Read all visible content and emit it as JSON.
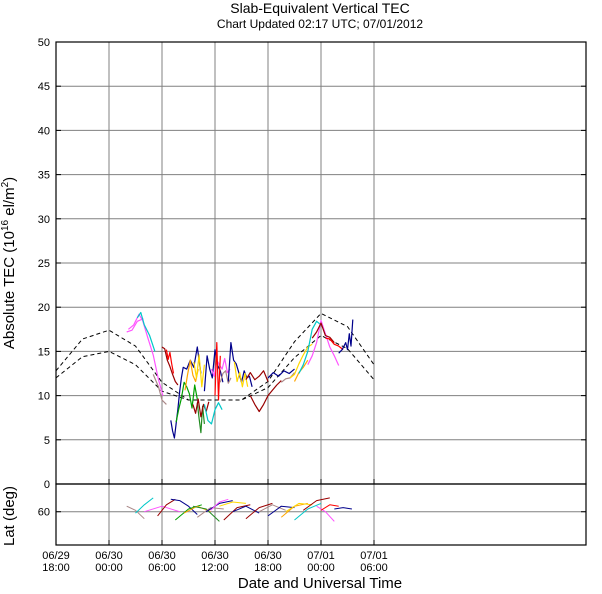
{
  "chart_data": {
    "type": "line",
    "title": "Slab-Equivalent Vertical TEC",
    "subtitle": "Chart Updated 02:17 UTC; 07/01/2012",
    "xlabel": "Date and Universal Time",
    "ylabel": "Absolute TEC (10",
    "ylabel_exp": "16",
    "ylabel_unit": " el/m",
    "ylabel_exp2": "2",
    "ylabel_close": ")",
    "lat_ylabel": "Lat (deg)",
    "x_unit": "hours since 06/29 18:00",
    "xlim": [
      0,
      60
    ],
    "ylim": [
      0,
      50
    ],
    "lat_ylim": [
      72,
      50
    ],
    "grid": true,
    "x_ticks": [
      {
        "x": 0,
        "date": "06/29",
        "time": "18:00"
      },
      {
        "x": 6,
        "date": "06/30",
        "time": "00:00"
      },
      {
        "x": 12,
        "date": "06/30",
        "time": "06:00"
      },
      {
        "x": 18,
        "date": "06/30",
        "time": "12:00"
      },
      {
        "x": 24,
        "date": "06/30",
        "time": "18:00"
      },
      {
        "x": 30,
        "date": "07/01",
        "time": "00:00"
      },
      {
        "x": 36,
        "date": "07/01",
        "time": "06:00"
      }
    ],
    "y_ticks": [
      0,
      5,
      10,
      15,
      20,
      25,
      30,
      35,
      40,
      45,
      50
    ],
    "lat_ticks": [
      60
    ],
    "reference_curves": [
      {
        "style": "dashed",
        "x": [
          0,
          3,
          6,
          9,
          12,
          15,
          18,
          21,
          24,
          27,
          30,
          33,
          36
        ],
        "y": [
          12.8,
          16.4,
          17.4,
          15.6,
          11.5,
          9.5,
          9.5,
          9.5,
          11.6,
          16.1,
          19.3,
          17.8,
          13.5
        ]
      },
      {
        "style": "dashed",
        "x": [
          0,
          3,
          6,
          9,
          12,
          15,
          18,
          21,
          24,
          27,
          30,
          33,
          36
        ],
        "y": [
          12.0,
          14.4,
          15.0,
          13.5,
          10.5,
          9.5,
          9.5,
          9.5,
          10.9,
          14.3,
          16.8,
          15.3,
          11.8
        ]
      }
    ],
    "series": [
      {
        "color": "#ff55ff",
        "x": [
          8.2,
          8.8,
          9.4,
          9.8,
          10.4,
          11.0,
          11.6,
          12.1
        ],
        "y": [
          17.5,
          18.0,
          19.2,
          18.5,
          16.5,
          14.6,
          11.8,
          10.0
        ]
      },
      {
        "color": "#ff55ff",
        "x": [
          8.0,
          8.6,
          9.2,
          9.9
        ],
        "y": [
          17.2,
          17.4,
          18.4,
          18.7
        ]
      },
      {
        "color": "#00c8c8",
        "x": [
          9.2,
          9.6,
          10.0,
          10.6,
          11.2
        ],
        "y": [
          18.8,
          19.4,
          18.0,
          16.8,
          15.0
        ]
      },
      {
        "color": "#aa8888",
        "x": [
          11.0,
          11.6,
          12.0,
          12.5
        ],
        "y": [
          12.4,
          11.0,
          9.5,
          9.0
        ]
      },
      {
        "color": "#990000",
        "x": [
          12.0,
          12.3,
          12.6,
          12.9,
          13.2,
          13.5,
          13.8
        ],
        "y": [
          15.5,
          15.3,
          14.0,
          13.3,
          12.4,
          11.6,
          11.2
        ]
      },
      {
        "color": "#ff0000",
        "x": [
          12.5,
          12.7,
          12.9,
          13.1,
          13.3
        ],
        "y": [
          15.2,
          14.1,
          14.9,
          13.6,
          12.5
        ]
      },
      {
        "color": "#00008b",
        "x": [
          13.0,
          13.2,
          13.4,
          13.6,
          13.8,
          14.0,
          14.2,
          14.4,
          14.8,
          15.2,
          15.6,
          16.0,
          16.4
        ],
        "y": [
          7.2,
          6.0,
          5.2,
          6.8,
          8.5,
          10.5,
          12.0,
          13.2,
          13.0,
          14.0,
          13.2,
          15.5,
          12.5
        ]
      },
      {
        "color": "#00a000",
        "x": [
          13.6,
          13.9,
          14.2,
          14.5,
          14.8,
          15.1,
          15.4,
          15.7,
          16.0
        ],
        "y": [
          7.0,
          8.5,
          9.7,
          11.5,
          11.0,
          10.2,
          8.6,
          11.2,
          9.6
        ]
      },
      {
        "color": "#ffa500",
        "x": [
          14.6,
          14.9,
          15.2,
          15.5,
          15.8,
          16.1
        ],
        "y": [
          10.6,
          12.4,
          14.0,
          12.3,
          11.6,
          13.0
        ]
      },
      {
        "color": "#228b22",
        "x": [
          16.0,
          16.2,
          16.4,
          16.6,
          16.8
        ],
        "y": [
          9.2,
          7.4,
          5.8,
          8.8,
          6.8
        ]
      },
      {
        "color": "#990000",
        "x": [
          15.5,
          15.8,
          16.1,
          16.4,
          16.7,
          17.0,
          17.3
        ],
        "y": [
          9.0,
          8.0,
          9.6,
          7.6,
          9.0,
          8.2,
          9.3
        ]
      },
      {
        "color": "#00c8c8",
        "x": [
          16.8,
          17.2,
          17.6,
          18.0,
          18.4,
          18.8
        ],
        "y": [
          9.0,
          7.2,
          6.8,
          8.4,
          9.2,
          8.4
        ]
      },
      {
        "color": "#ffd800",
        "x": [
          15.6,
          15.9,
          16.2,
          16.5,
          16.8
        ],
        "y": [
          13.8,
          12.0,
          14.6,
          11.0,
          13.5
        ]
      },
      {
        "color": "#00008b",
        "x": [
          16.8,
          17.1,
          17.4,
          17.7,
          18.0,
          18.3,
          18.6,
          18.9
        ],
        "y": [
          10.5,
          14.5,
          13.0,
          12.0,
          15.2,
          13.4,
          12.8,
          11.5
        ]
      },
      {
        "color": "#ff55ff",
        "x": [
          17.6,
          17.9,
          18.2,
          18.5,
          18.8,
          19.1,
          19.4,
          19.7
        ],
        "y": [
          13.0,
          12.2,
          14.0,
          13.5,
          13.0,
          14.2,
          12.6,
          13.0
        ]
      },
      {
        "color": "#ff0000",
        "x": [
          18.0,
          18.2,
          18.4,
          18.6
        ],
        "y": [
          10.0,
          16.0,
          9.5,
          14.5
        ]
      },
      {
        "color": "#aa8888",
        "x": [
          18.6,
          18.9,
          19.2,
          19.5,
          19.8
        ],
        "y": [
          11.5,
          12.5,
          12.8,
          11.4,
          12.0
        ]
      },
      {
        "color": "#00008b",
        "x": [
          19.5,
          19.8,
          20.1,
          20.4,
          20.7,
          21.0,
          21.3,
          21.6,
          21.9,
          22.2
        ],
        "y": [
          11.6,
          16.0,
          14.0,
          13.6,
          12.6,
          11.5,
          12.8,
          12.0,
          12.2,
          11.0
        ]
      },
      {
        "color": "#ffd800",
        "x": [
          20.2,
          20.5,
          20.8,
          21.1,
          21.4,
          21.7
        ],
        "y": [
          13.8,
          11.6,
          12.6,
          11.0,
          12.5,
          11.0
        ]
      },
      {
        "color": "#990000",
        "x": [
          21.5,
          22.0,
          22.5,
          23.0,
          23.5,
          24.0
        ],
        "y": [
          11.8,
          12.6,
          11.8,
          12.2,
          12.8,
          11.6
        ]
      },
      {
        "color": "#990000",
        "x": [
          22.0,
          22.5,
          23.0,
          23.5,
          24.0,
          24.5,
          25.0,
          25.5
        ],
        "y": [
          10.0,
          9.0,
          8.2,
          9.0,
          10.0,
          10.6,
          11.2,
          11.7
        ]
      },
      {
        "color": "#00008b",
        "x": [
          24.0,
          24.6,
          25.2,
          25.8,
          26.4,
          27.0
        ],
        "y": [
          12.0,
          12.6,
          12.2,
          12.8,
          12.5,
          13.0
        ]
      },
      {
        "color": "#aa8888",
        "x": [
          25.5,
          26.0,
          26.5,
          27.0
        ],
        "y": [
          11.5,
          11.9,
          12.0,
          12.6
        ]
      },
      {
        "color": "#ffd800",
        "x": [
          26.5,
          27.0,
          27.5,
          28.0,
          28.5,
          29.0
        ],
        "y": [
          12.0,
          12.4,
          13.6,
          14.6,
          15.5,
          15.8
        ]
      },
      {
        "color": "#ffa500",
        "x": [
          27.0,
          27.5,
          28.0,
          28.5
        ],
        "y": [
          11.6,
          12.6,
          13.2,
          14.0
        ]
      },
      {
        "color": "#00c8c8",
        "x": [
          27.5,
          28.0,
          28.5,
          29.0,
          29.5,
          30.0
        ],
        "y": [
          12.5,
          13.5,
          15.0,
          17.5,
          18.4,
          18.0
        ]
      },
      {
        "color": "#ff55ff",
        "x": [
          28.5,
          29.0,
          29.5,
          30.0,
          30.5,
          31.0,
          31.5,
          32.0
        ],
        "y": [
          13.5,
          14.5,
          16.0,
          18.5,
          17.0,
          15.5,
          14.5,
          13.4
        ]
      },
      {
        "color": "#990000",
        "x": [
          29.0,
          29.5,
          30.0,
          30.5,
          31.0,
          31.5
        ],
        "y": [
          16.5,
          17.2,
          18.2,
          16.8,
          16.6,
          16.0
        ]
      },
      {
        "color": "#ff0000",
        "x": [
          30.5,
          31.0,
          31.5,
          32.0,
          32.5
        ],
        "y": [
          16.5,
          16.4,
          15.8,
          15.6,
          15.2
        ]
      },
      {
        "color": "#00008b",
        "x": [
          32.0,
          32.4,
          32.8,
          33.0,
          33.2,
          33.4,
          33.6
        ],
        "y": [
          14.8,
          15.2,
          16.0,
          15.2,
          17.0,
          15.6,
          18.6
        ]
      }
    ],
    "lat_series": [
      {
        "color": "#aa8888",
        "x": [
          8.0,
          9.0,
          10.0
        ],
        "y": [
          58.0,
          59.5,
          62.5
        ]
      },
      {
        "color": "#00c8c8",
        "x": [
          9.0,
          10.0,
          11.0
        ],
        "y": [
          60.5,
          57.5,
          55.0
        ]
      },
      {
        "color": "#ff55ff",
        "x": [
          10.0,
          12.0,
          14.0
        ],
        "y": [
          60.0,
          58.0,
          60.0
        ]
      },
      {
        "color": "#990000",
        "x": [
          11.5,
          12.5,
          13.5
        ],
        "y": [
          61.5,
          57.5,
          55.5
        ]
      },
      {
        "color": "#00008b",
        "x": [
          13.0,
          14.0,
          15.0,
          16.0
        ],
        "y": [
          55.5,
          56.0,
          58.0,
          61.0
        ]
      },
      {
        "color": "#00a000",
        "x": [
          13.5,
          15.0,
          16.5
        ],
        "y": [
          63.0,
          59.0,
          57.5
        ]
      },
      {
        "color": "#ffa500",
        "x": [
          14.5,
          16.0,
          17.5
        ],
        "y": [
          60.5,
          58.0,
          60.0
        ]
      },
      {
        "color": "#228b22",
        "x": [
          15.5,
          17.0,
          18.5
        ],
        "y": [
          58.0,
          59.0,
          63.5
        ]
      },
      {
        "color": "#aa8888",
        "x": [
          16.0,
          17.5,
          19.0
        ],
        "y": [
          62.0,
          58.5,
          59.0
        ]
      },
      {
        "color": "#00008b",
        "x": [
          17.0,
          18.5,
          20.0
        ],
        "y": [
          60.0,
          57.0,
          56.0
        ]
      },
      {
        "color": "#ff55ff",
        "x": [
          17.5,
          18.5,
          19.5
        ],
        "y": [
          59.5,
          56.5,
          55.5
        ]
      },
      {
        "color": "#ffd800",
        "x": [
          18.5,
          20.0,
          21.5
        ],
        "y": [
          58.0,
          56.5,
          57.0
        ]
      },
      {
        "color": "#990000",
        "x": [
          19.0,
          20.5,
          22.0
        ],
        "y": [
          63.0,
          58.5,
          57.5
        ]
      },
      {
        "color": "#00008b",
        "x": [
          20.0,
          21.5,
          23.0
        ],
        "y": [
          60.0,
          58.0,
          60.5
        ]
      },
      {
        "color": "#990000",
        "x": [
          21.5,
          23.0,
          24.5
        ],
        "y": [
          62.5,
          58.5,
          57.0
        ]
      },
      {
        "color": "#aa8888",
        "x": [
          23.0,
          24.5,
          26.0
        ],
        "y": [
          60.0,
          57.5,
          59.5
        ]
      },
      {
        "color": "#00008b",
        "x": [
          24.0,
          25.5,
          27.0
        ],
        "y": [
          61.5,
          58.0,
          58.5
        ]
      },
      {
        "color": "#ffa500",
        "x": [
          25.5,
          27.0,
          28.5
        ],
        "y": [
          62.0,
          58.0,
          57.0
        ]
      },
      {
        "color": "#ffd800",
        "x": [
          26.0,
          27.5,
          29.0
        ],
        "y": [
          60.0,
          57.0,
          57.5
        ]
      },
      {
        "color": "#00c8c8",
        "x": [
          27.0,
          28.5,
          30.0
        ],
        "y": [
          63.0,
          59.0,
          57.0
        ]
      },
      {
        "color": "#990000",
        "x": [
          28.0,
          29.5,
          31.0
        ],
        "y": [
          59.5,
          56.0,
          55.0
        ]
      },
      {
        "color": "#ff55ff",
        "x": [
          29.5,
          30.5,
          31.5
        ],
        "y": [
          58.0,
          60.0,
          63.5
        ]
      },
      {
        "color": "#ff0000",
        "x": [
          30.0,
          31.0,
          32.0
        ],
        "y": [
          59.5,
          57.5,
          58.0
        ]
      },
      {
        "color": "#00008b",
        "x": [
          31.5,
          32.5,
          33.5
        ],
        "y": [
          59.0,
          58.5,
          59.0
        ]
      }
    ]
  }
}
